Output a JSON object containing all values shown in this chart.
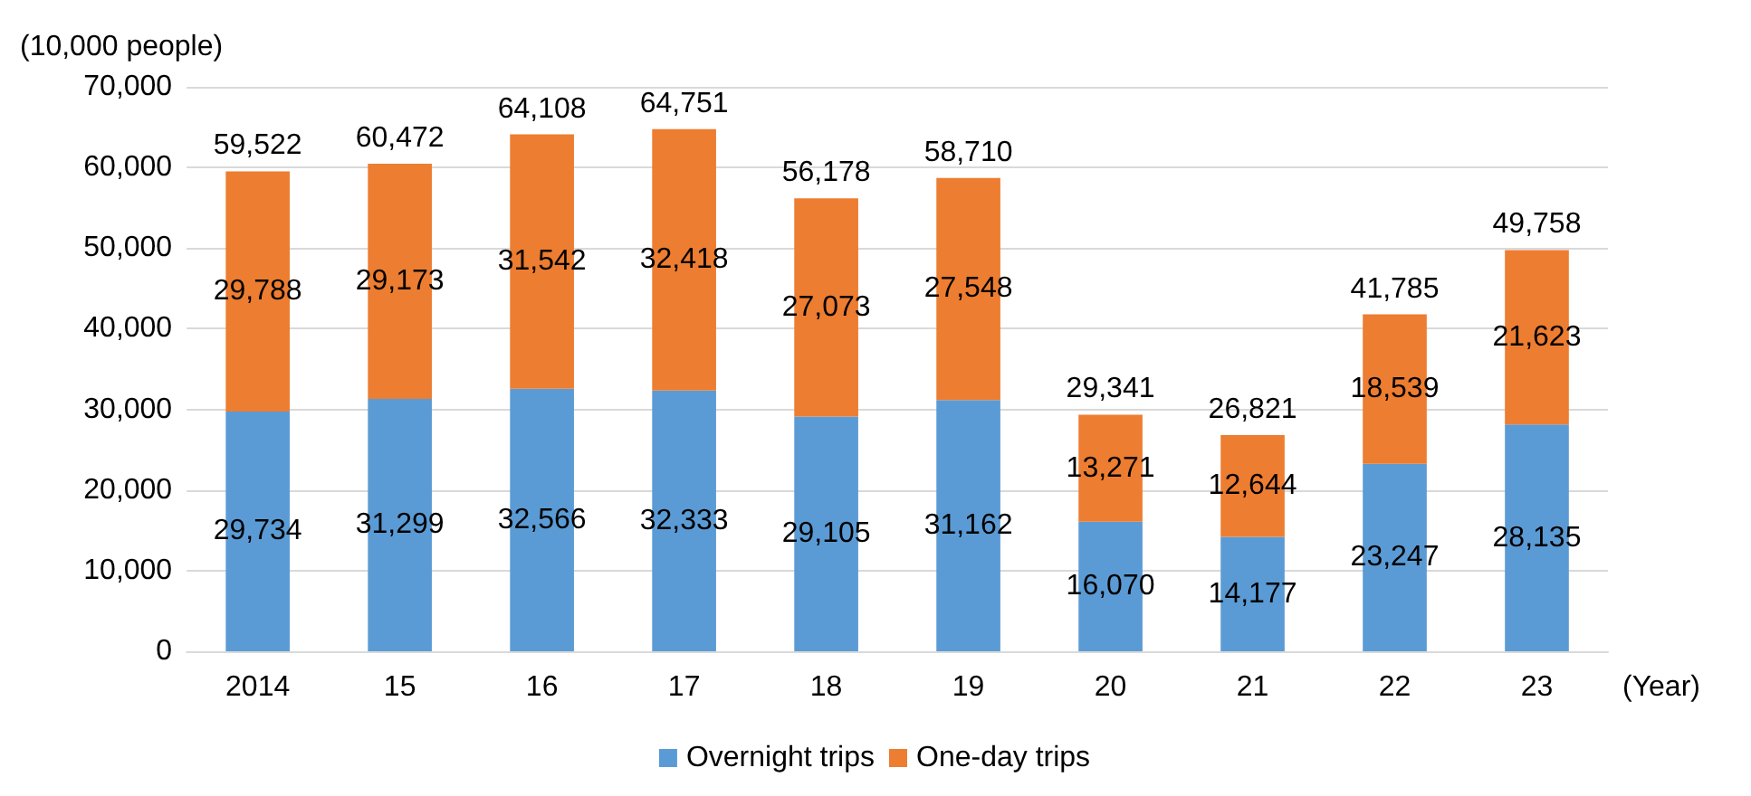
{
  "chart_data": {
    "type": "bar",
    "stacked": true,
    "ylabel": "(10,000 people)",
    "xlabel": "(Year)",
    "categories": [
      "2014",
      "15",
      "16",
      "17",
      "18",
      "19",
      "20",
      "21",
      "22",
      "23"
    ],
    "series": [
      {
        "name": "Overnight trips",
        "color": "#5b9bd5",
        "values": [
          29734,
          31299,
          32566,
          32333,
          29105,
          31162,
          16070,
          14177,
          23247,
          28135
        ],
        "value_labels": [
          "29,734",
          "31,299",
          "32,566",
          "32,333",
          "29,105",
          "31,162",
          "16,070",
          "14,177",
          "23,247",
          "28,135"
        ]
      },
      {
        "name": "One-day trips",
        "color": "#ed7d31",
        "values": [
          29788,
          29173,
          31542,
          32418,
          27073,
          27548,
          13271,
          12644,
          18539,
          21623
        ],
        "value_labels": [
          "29,788",
          "29,173",
          "31,542",
          "32,418",
          "27,073",
          "27,548",
          "13,271",
          "12,644",
          "18,539",
          "21,623"
        ]
      }
    ],
    "totals": [
      "59,522",
      "60,472",
      "64,108",
      "64,751",
      "56,178",
      "58,710",
      "29,341",
      "26,821",
      "41,785",
      "49,758"
    ],
    "ylim": [
      0,
      70000
    ],
    "yticks": [
      0,
      {
        "value": 10000,
        "label": "10,000"
      },
      {
        "value": 20000,
        "label": "20,000"
      },
      {
        "value": 30000,
        "label": "30,000"
      },
      {
        "value": 40000,
        "label": "40,000"
      },
      {
        "value": 50000,
        "label": "50,000"
      },
      {
        "value": 60000,
        "label": "60,000"
      },
      {
        "value": 70000,
        "label": "70,000"
      }
    ],
    "grid": "y",
    "legend": "bottom"
  }
}
